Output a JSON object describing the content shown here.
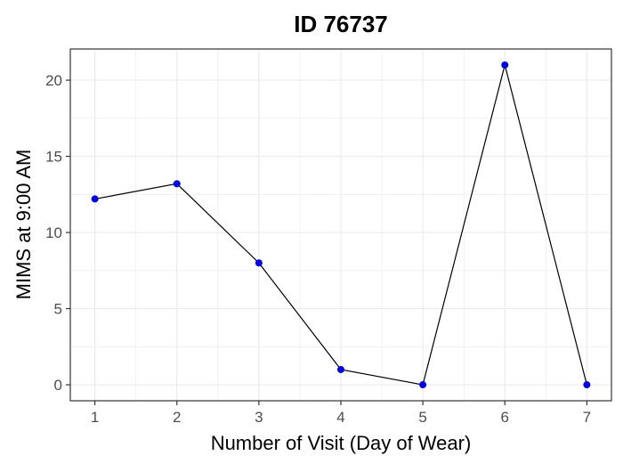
{
  "chart_data": {
    "type": "line",
    "title": "ID 76737",
    "xlabel": "Number of Visit (Day of Wear)",
    "ylabel": "MIMS at 9:00 AM",
    "x": [
      1,
      2,
      3,
      4,
      5,
      6,
      7
    ],
    "series": [
      {
        "values": [
          12.2,
          13.2,
          8.0,
          1.0,
          0.0,
          21.0,
          0.0
        ],
        "line_color": "#000000",
        "point_color": "#0000ee"
      }
    ],
    "xlim": [
      0.7,
      7.3
    ],
    "ylim": [
      -1.05,
      22.05
    ],
    "x_ticks": [
      1,
      2,
      3,
      4,
      5,
      6,
      7
    ],
    "y_ticks": [
      0,
      5,
      10,
      15,
      20
    ],
    "grid": true,
    "grid_color": "#ebebeb",
    "panel_border_color": "#333333",
    "tick_color": "#333333"
  }
}
